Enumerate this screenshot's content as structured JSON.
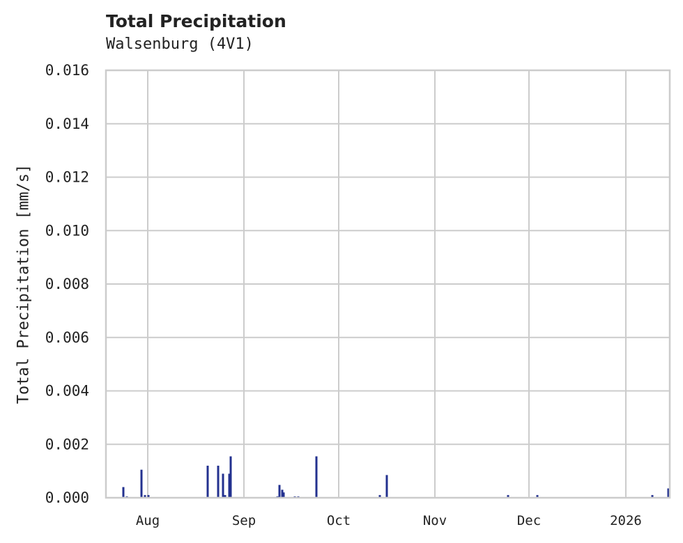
{
  "chart_data": {
    "type": "bar",
    "title": "Total Precipitation",
    "subtitle": "Walsenburg (4V1)",
    "xlabel": "",
    "ylabel": "Total Precipitation [mm/s]",
    "ylim": [
      0,
      0.016
    ],
    "yticks": [
      "0.000",
      "0.002",
      "0.004",
      "0.006",
      "0.008",
      "0.010",
      "0.012",
      "0.014",
      "0.016"
    ],
    "xticks": [
      "Aug",
      "Sep",
      "Oct",
      "Nov",
      "Dec",
      "2026"
    ],
    "grid": true,
    "legend": null,
    "bar_color": "#23318f",
    "x": [
      "2025-07-23",
      "2025-07-24",
      "2025-07-29",
      "2025-07-30",
      "2025-07-31",
      "2025-08-21",
      "2025-08-24",
      "2025-08-26",
      "2025-08-26b",
      "2025-08-28",
      "2025-08-28b",
      "2025-09-11",
      "2025-09-12",
      "2025-09-12b",
      "2025-09-13",
      "2025-09-16",
      "2025-09-17",
      "2025-09-23",
      "2025-10-14",
      "2025-10-16",
      "2025-11-24",
      "2025-12-03",
      "2026-01-09",
      "2026-01-14"
    ],
    "values": [
      0.0004,
      5e-05,
      0.00105,
      0.0001,
      0.0001,
      0.0012,
      0.0012,
      0.0009,
      0.0001,
      0.0009,
      0.00155,
      5e-05,
      0.00048,
      0.0003,
      0.0002,
      5e-05,
      5e-05,
      0.00155,
      0.0001,
      0.00085,
      0.0001,
      0.0001,
      0.0001,
      0.00035
    ]
  }
}
